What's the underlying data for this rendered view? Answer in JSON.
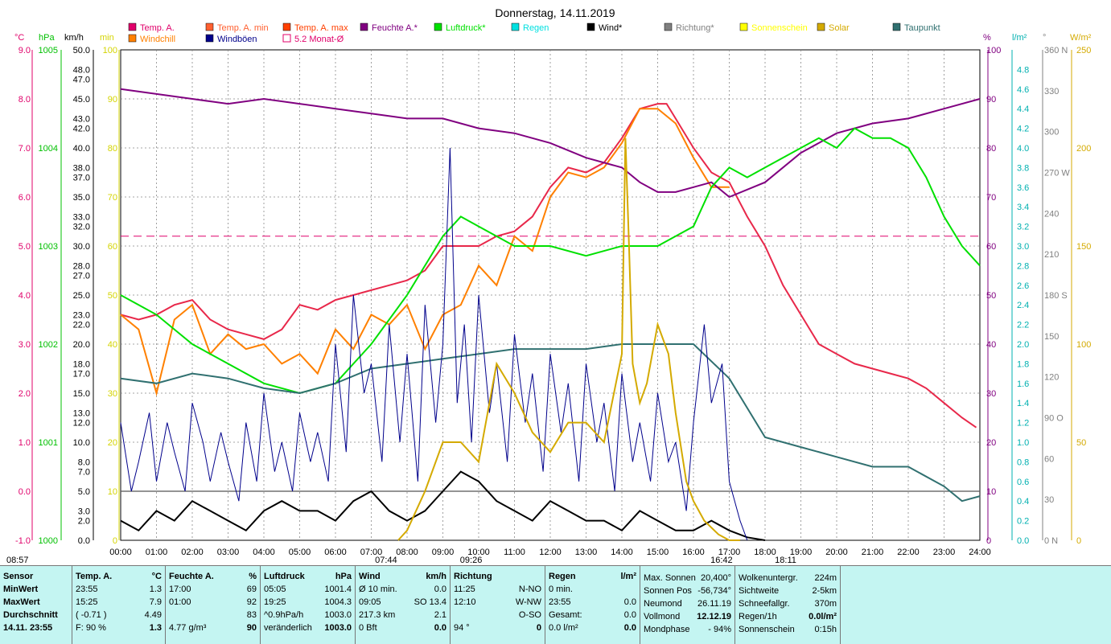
{
  "title": "Donnerstag, 14.11.2019",
  "legend": [
    {
      "label": "Temp. A.",
      "color": "#e0006a"
    },
    {
      "label": "Temp. A. min",
      "color": "#ff6030"
    },
    {
      "label": "Temp. A. max",
      "color": "#ff4000"
    },
    {
      "label": "Feuchte A.*",
      "color": "#800080"
    },
    {
      "label": "Luftdruck*",
      "color": "#00e000"
    },
    {
      "label": "Regen",
      "color": "#00e0e0"
    },
    {
      "label": "Wind*",
      "color": "#000000"
    },
    {
      "label": "Richtung*",
      "color": "#808080"
    },
    {
      "label": "Sonnenschein",
      "color": "#ffff00"
    },
    {
      "label": "Solar",
      "color": "#d4aa00"
    },
    {
      "label": "Taupunkt",
      "color": "#307070"
    },
    {
      "label": "Windchill",
      "color": "#ff8000"
    },
    {
      "label": "Windböen",
      "color": "#00008b"
    },
    {
      "label": "5.2 Monat-Ø",
      "color": "#e0006a"
    }
  ],
  "axis_units": {
    "temp": "°C",
    "hpa": "hPa",
    "kmh": "km/h",
    "min": "min",
    "pct": "%",
    "lm2": "l/m²",
    "deg": "°",
    "wm2": "W/m²"
  },
  "chart_data": {
    "type": "line",
    "title": "Donnerstag, 14.11.2019",
    "x_ticks": [
      "00:00",
      "01:00",
      "02:00",
      "03:00",
      "04:00",
      "05:00",
      "06:00",
      "07:00",
      "08:00",
      "09:00",
      "10:00",
      "11:00",
      "12:00",
      "13:00",
      "14:00",
      "15:00",
      "16:00",
      "17:00",
      "18:00",
      "19:00",
      "20:00",
      "21:00",
      "22:00",
      "23:00",
      "24:00"
    ],
    "temp_ticks": [
      "9.0",
      "8.0",
      "7.0",
      "6.0",
      "5.0",
      "4.0",
      "3.0",
      "2.0",
      "1.0",
      "0.0",
      "-1.0"
    ],
    "hpa_ticks": [
      "1005",
      "",
      "1004",
      "",
      "1003",
      "",
      "1002",
      "",
      "1001",
      "",
      "1000"
    ],
    "kmh_ticks": [
      "50.0",
      "48.0",
      "47.0",
      "45.0",
      "43.0",
      "42.0",
      "40.0",
      "38.0",
      "37.0",
      "35.0",
      "33.0",
      "32.0",
      "30.0",
      "28.0",
      "27.0",
      "25.0",
      "23.0",
      "22.0",
      "20.0",
      "18.0",
      "17.0",
      "15.0",
      "13.0",
      "12.0",
      "10.0",
      "8.0",
      "7.0",
      "5.0",
      "3.0",
      "2.0",
      "0.0"
    ],
    "min_ticks": [
      "100",
      "90",
      "80",
      "70",
      "60",
      "50",
      "40",
      "30",
      "20",
      "10",
      "0"
    ],
    "pct_ticks": [
      "100",
      "90",
      "80",
      "70",
      "60",
      "50",
      "40",
      "30",
      "20",
      "10",
      "0"
    ],
    "lm2_ticks": [
      "4.8",
      "4.6",
      "4.4",
      "4.2",
      "4.0",
      "3.8",
      "3.6",
      "3.4",
      "3.2",
      "3.0",
      "2.8",
      "2.6",
      "2.4",
      "2.2",
      "2.0",
      "1.8",
      "1.6",
      "1.4",
      "1.2",
      "1.0",
      "0.8",
      "0.6",
      "0.4",
      "0.2",
      "0.0"
    ],
    "deg_ticks": [
      "360 N",
      "330",
      "300",
      "270 W",
      "240",
      "210",
      "180 S",
      "150",
      "120",
      "90 O",
      "60",
      "30",
      "0 N"
    ],
    "wm2_ticks": [
      "250",
      "200",
      "150",
      "100",
      "50",
      "0"
    ],
    "temp_range": [
      -1,
      9
    ],
    "series": [
      {
        "name": "Temp. A.",
        "color": "#e8284a",
        "x": [
          0,
          0.5,
          1,
          1.5,
          2,
          2.5,
          3,
          3.5,
          4,
          4.5,
          5,
          5.5,
          6,
          6.5,
          7,
          7.5,
          8,
          8.5,
          9,
          9.5,
          10,
          10.5,
          11,
          11.5,
          12,
          12.5,
          13,
          13.5,
          14,
          14.5,
          15,
          15.25,
          15.5,
          16,
          16.5,
          17,
          17.5,
          18,
          18.5,
          19,
          19.5,
          20,
          20.5,
          21,
          21.5,
          22,
          22.5,
          23,
          23.5,
          23.9
        ],
        "y": [
          3.6,
          3.5,
          3.6,
          3.8,
          3.9,
          3.5,
          3.3,
          3.2,
          3.1,
          3.3,
          3.8,
          3.7,
          3.9,
          4.0,
          4.1,
          4.2,
          4.3,
          4.5,
          5.0,
          5.0,
          5.0,
          5.2,
          5.3,
          5.6,
          6.2,
          6.6,
          6.5,
          6.7,
          7.2,
          7.8,
          7.9,
          7.9,
          7.6,
          7.0,
          6.5,
          6.3,
          5.6,
          5.0,
          4.2,
          3.6,
          3.0,
          2.8,
          2.6,
          2.5,
          2.4,
          2.3,
          2.1,
          1.8,
          1.5,
          1.3
        ]
      },
      {
        "name": "Windchill",
        "color": "#ff8000",
        "x": [
          0,
          0.5,
          1,
          1.5,
          2,
          2.5,
          3,
          3.5,
          4,
          4.5,
          5,
          5.5,
          6,
          6.5,
          7,
          7.5,
          8,
          8.5,
          9,
          9.5,
          10,
          10.5,
          11,
          11.5,
          12,
          12.5,
          13,
          13.5,
          14,
          14.5,
          15,
          15.5,
          16,
          16.5,
          17
        ],
        "y": [
          3.6,
          3.3,
          2.0,
          3.5,
          3.8,
          2.8,
          3.2,
          2.9,
          3.0,
          2.6,
          2.8,
          2.4,
          3.3,
          2.9,
          3.6,
          3.4,
          3.8,
          2.9,
          3.6,
          3.8,
          4.6,
          4.2,
          5.2,
          4.9,
          6.0,
          6.5,
          6.4,
          6.6,
          7.1,
          7.8,
          7.8,
          7.5,
          6.8,
          6.2,
          6.2
        ]
      },
      {
        "name": "Feuchte A.*",
        "color": "#800080",
        "axis": "pct",
        "x": [
          0,
          1,
          2,
          3,
          4,
          5,
          6,
          7,
          8,
          9,
          10,
          11,
          12,
          13,
          14,
          14.5,
          15,
          15.5,
          16,
          16.5,
          17,
          18,
          19,
          20,
          21,
          22,
          23,
          24
        ],
        "y": [
          92,
          91,
          90,
          89,
          90,
          89,
          88,
          87,
          86,
          86,
          84,
          83,
          81,
          78,
          76,
          73,
          71,
          71,
          72,
          73,
          70,
          73,
          79,
          83,
          85,
          86,
          88,
          90
        ]
      },
      {
        "name": "Luftdruck*",
        "color": "#00e000",
        "axis": "hpa",
        "x": [
          0,
          1,
          2,
          3,
          4,
          5,
          6,
          7,
          8,
          9,
          9.5,
          10,
          11,
          12,
          13,
          14,
          15,
          16,
          16.5,
          17,
          17.5,
          18,
          19,
          19.5,
          20,
          20.5,
          21,
          21.5,
          22,
          22.5,
          23,
          23.5,
          24
        ],
        "y": [
          1002.5,
          1002.3,
          1002.0,
          1001.8,
          1001.6,
          1001.5,
          1001.6,
          1002.0,
          1002.5,
          1003.1,
          1003.3,
          1003.2,
          1003.0,
          1003.0,
          1002.9,
          1003.0,
          1003.0,
          1003.2,
          1003.6,
          1003.8,
          1003.7,
          1003.8,
          1004.0,
          1004.1,
          1004.0,
          1004.2,
          1004.1,
          1004.1,
          1004.0,
          1003.7,
          1003.3,
          1003.0,
          1002.8
        ]
      },
      {
        "name": "Taupunkt",
        "color": "#307070",
        "x": [
          0,
          1,
          2,
          3,
          4,
          5,
          6,
          7,
          8,
          9,
          10,
          11,
          12,
          13,
          14,
          15,
          16,
          17,
          18,
          19,
          20,
          21,
          22,
          23,
          23.5,
          24
        ],
        "y": [
          2.3,
          2.2,
          2.4,
          2.3,
          2.1,
          2.0,
          2.2,
          2.5,
          2.6,
          2.7,
          2.8,
          2.9,
          2.9,
          2.9,
          3.0,
          3.0,
          3.0,
          2.3,
          1.1,
          0.9,
          0.7,
          0.5,
          0.5,
          0.1,
          -0.2,
          -0.1
        ]
      },
      {
        "name": "Wind*",
        "color": "#000000",
        "axis": "kmh",
        "x": [
          0,
          0.5,
          1,
          1.5,
          2,
          2.5,
          3,
          3.5,
          4,
          4.5,
          5,
          5.5,
          6,
          6.5,
          7,
          7.5,
          8,
          8.5,
          9,
          9.5,
          10,
          10.5,
          11,
          11.5,
          12,
          12.5,
          13,
          13.5,
          14,
          14.5,
          15,
          15.5,
          16,
          16.5,
          17,
          17.5,
          18
        ],
        "y": [
          2,
          1,
          3,
          2,
          4,
          3,
          2,
          1,
          3,
          4,
          3,
          3,
          2,
          4,
          5,
          3,
          2,
          3,
          5,
          7,
          6,
          4,
          3,
          2,
          4,
          3,
          2,
          2,
          1,
          3,
          2,
          1,
          1,
          2,
          1,
          0.3,
          0
        ]
      },
      {
        "name": "Windböen",
        "color": "#00008b",
        "axis": "kmh",
        "x": [
          0,
          0.3,
          0.5,
          0.8,
          1,
          1.3,
          1.5,
          1.8,
          2,
          2.3,
          2.5,
          2.8,
          3,
          3.3,
          3.5,
          3.8,
          4,
          4.3,
          4.5,
          4.8,
          5,
          5.3,
          5.5,
          5.8,
          6,
          6.3,
          6.5,
          6.8,
          7,
          7.3,
          7.5,
          7.8,
          8,
          8.3,
          8.5,
          8.8,
          9,
          9.2,
          9.4,
          9.6,
          9.8,
          10,
          10.3,
          10.5,
          10.8,
          11,
          11.3,
          11.5,
          11.8,
          12,
          12.3,
          12.5,
          12.8,
          13,
          13.3,
          13.5,
          13.8,
          14,
          14.3,
          14.5,
          14.8,
          15,
          15.3,
          15.5,
          15.8,
          16,
          16.3,
          16.5,
          16.8,
          17,
          17.3,
          17.5
        ],
        "y": [
          12,
          5,
          8,
          13,
          6,
          12,
          9,
          5,
          14,
          10,
          6,
          11,
          8,
          4,
          12,
          6,
          15,
          7,
          10,
          5,
          13,
          8,
          11,
          6,
          20,
          9,
          25,
          15,
          18,
          8,
          22,
          10,
          19,
          6,
          24,
          12,
          20,
          40,
          14,
          22,
          10,
          25,
          13,
          18,
          8,
          21,
          12,
          17,
          7,
          19,
          11,
          16,
          6,
          18,
          10,
          14,
          5,
          17,
          8,
          12,
          6,
          15,
          8,
          10,
          3,
          12,
          22,
          14,
          18,
          6,
          2,
          0
        ]
      },
      {
        "name": "Solar",
        "color": "#d4aa00",
        "axis": "wm2",
        "x": [
          7.75,
          8,
          8.5,
          9,
          9.5,
          10,
          10.5,
          11,
          11.5,
          12,
          12.5,
          13,
          13.5,
          14,
          14.1,
          14.2,
          14.3,
          14.5,
          14.7,
          15,
          15.3,
          15.5,
          15.8,
          16,
          16.3,
          16.7,
          17,
          17.3
        ],
        "y": [
          0,
          5,
          25,
          50,
          50,
          40,
          90,
          75,
          55,
          45,
          60,
          60,
          50,
          95,
          205,
          150,
          90,
          70,
          80,
          110,
          95,
          65,
          30,
          20,
          10,
          3,
          0,
          0
        ]
      }
    ],
    "monthly_avg": 5.2,
    "markers": {
      "sunrise": "07:44",
      "sunset": "16:42",
      "noon": "09:26",
      "night_end": "08:57",
      "night_start": "18:11"
    }
  },
  "panel": {
    "sensor": {
      "h": "Sensor",
      "rows": [
        "MinWert",
        "MaxWert",
        "Durchschnitt",
        "14.11. 23:55"
      ]
    },
    "temp": {
      "h": "Temp. A.",
      "u": "°C",
      "rows": [
        [
          "23:55",
          "1.3"
        ],
        [
          "15:25",
          "7.9"
        ],
        [
          "( -0.71 )",
          "4.49"
        ],
        [
          "F: 90 %",
          "1.3"
        ]
      ]
    },
    "feuchte": {
      "h": "Feuchte A.",
      "u": "%",
      "rows": [
        [
          "17:00",
          "69"
        ],
        [
          "01:00",
          "92"
        ],
        [
          "",
          "83"
        ],
        [
          "4.77 g/m³",
          "90"
        ]
      ]
    },
    "druck": {
      "h": "Luftdruck",
      "u": "hPa",
      "rows": [
        [
          "05:05",
          "1001.4"
        ],
        [
          "19:25",
          "1004.3"
        ],
        [
          "^0.9hPa/h",
          "1003.0"
        ],
        [
          "veränderlich",
          "1003.0"
        ]
      ]
    },
    "wind": {
      "h": "Wind",
      "u": "km/h",
      "rows": [
        [
          "Ø 10 min.",
          "0.0"
        ],
        [
          "09:05",
          "SO 13.4"
        ],
        [
          "217.3 km",
          "2.1"
        ],
        [
          "0 Bft",
          "0.0"
        ]
      ]
    },
    "richtung": {
      "h": "Richtung",
      "rows": [
        [
          "11:25",
          "N-NO"
        ],
        [
          "12:10",
          "W-NW"
        ],
        [
          "",
          "O-SO"
        ],
        [
          "94 °",
          "0"
        ]
      ]
    },
    "regen": {
      "h": "Regen",
      "u": "l/m²",
      "rows": [
        [
          "0 min.",
          ""
        ],
        [
          "23:55",
          "0.0"
        ],
        [
          "Gesamt:",
          "0.0"
        ],
        [
          "0.0 l/m²",
          "0.0"
        ]
      ]
    },
    "astro": {
      "rows": [
        [
          "Max. Sonnen",
          "20,400°"
        ],
        [
          "Sonnen Pos",
          "-56,734°"
        ],
        [
          "Neumond",
          "26.11.19"
        ],
        [
          "Vollmond",
          "12.12.19"
        ],
        [
          "Mondphase",
          "- 94%"
        ]
      ]
    },
    "misc": {
      "rows": [
        [
          "Wolkenuntergr.",
          "224m"
        ],
        [
          "Sichtweite",
          "2-5km"
        ],
        [
          "Schneefallgr.",
          "370m"
        ],
        [
          "Regen/1h",
          "0.0l/m²"
        ],
        [
          "Sonnenschein",
          "0:15h"
        ]
      ]
    }
  }
}
